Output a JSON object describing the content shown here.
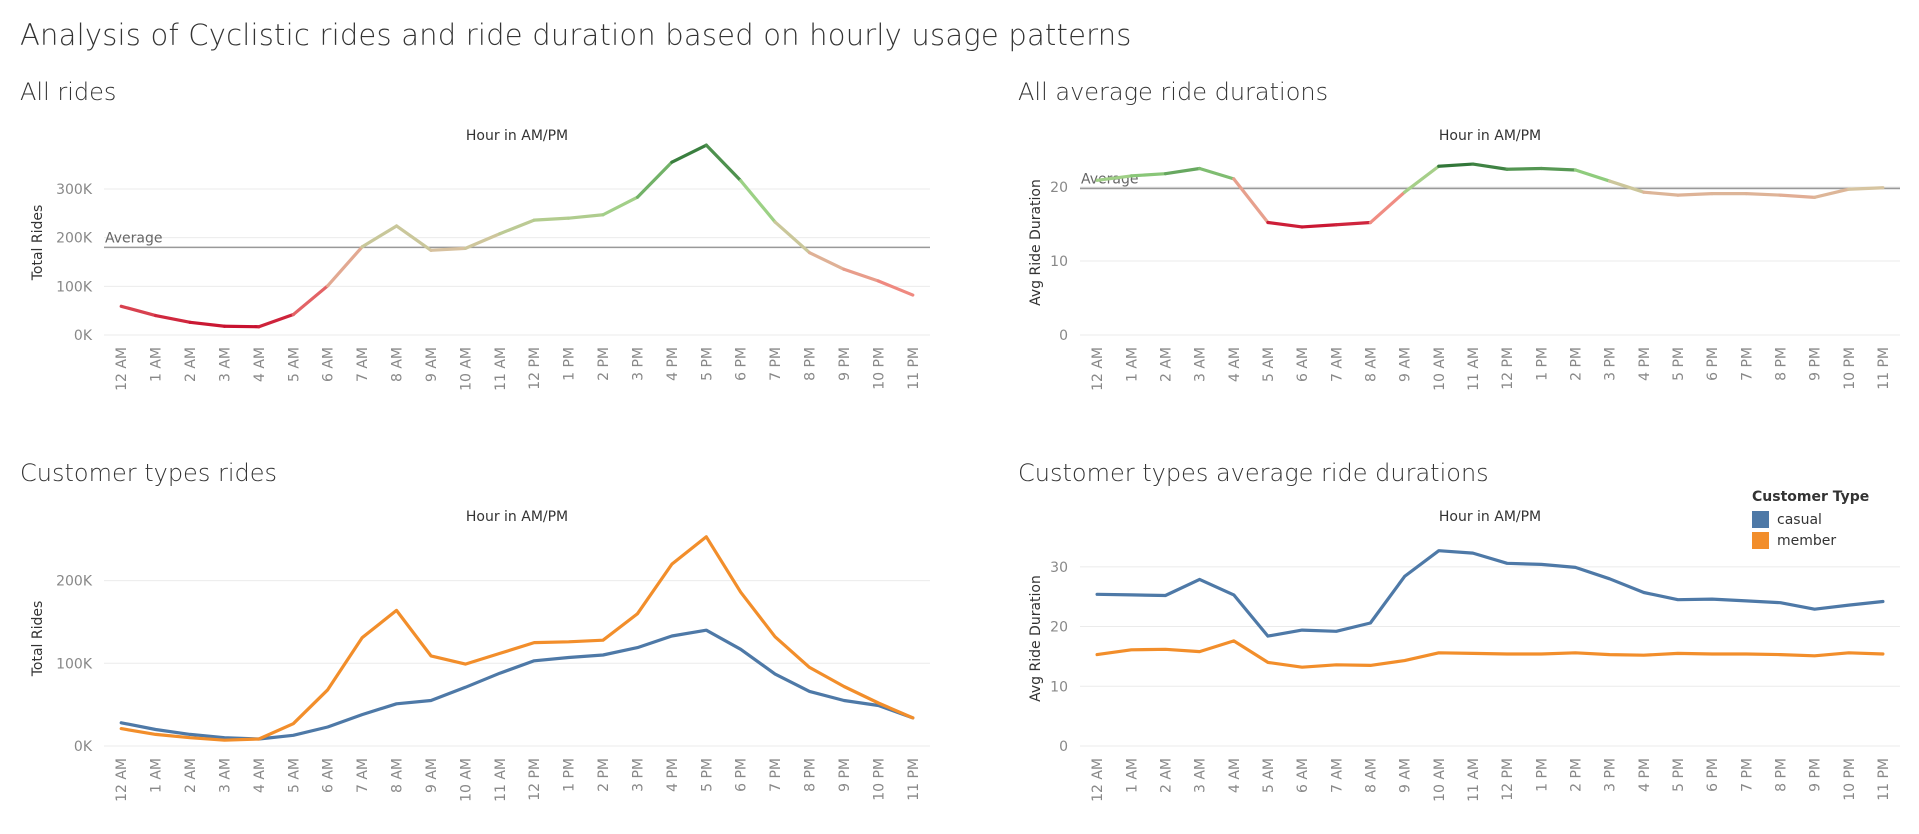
{
  "dashboard": {
    "title": "Analysis of Cyclistic rides and ride duration based on hourly usage patterns"
  },
  "colors": {
    "casual": "#4e79a7",
    "member": "#f28e2b",
    "average_line": "#999999",
    "grid": "#ebebeb"
  },
  "chart_data": [
    {
      "id": "all-rides",
      "panel_title": "All rides",
      "type": "line",
      "xlabel": "Hour in AM/PM",
      "ylabel": "Total Rides",
      "categories": [
        "12 AM",
        "1 AM",
        "2 AM",
        "3 AM",
        "4 AM",
        "5 AM",
        "6 AM",
        "7 AM",
        "8 AM",
        "9 AM",
        "10 AM",
        "11 AM",
        "12 PM",
        "1 PM",
        "2 PM",
        "3 PM",
        "4 PM",
        "5 PM",
        "6 PM",
        "7 PM",
        "8 PM",
        "9 PM",
        "10 PM",
        "11 PM"
      ],
      "ylim": [
        0,
        380000
      ],
      "yticks": [
        0,
        100000,
        200000,
        300000
      ],
      "ytick_labels": [
        "0K",
        "100K",
        "200K",
        "300K"
      ],
      "series": [
        {
          "values": [
            59000,
            40000,
            26000,
            18000,
            17000,
            42000,
            101000,
            181000,
            224000,
            174000,
            178000,
            208000,
            236000,
            240000,
            247000,
            283000,
            355000,
            390000,
            317000,
            232000,
            169000,
            135000,
            111000,
            82000
          ]
        }
      ],
      "average": {
        "label": "Average",
        "value": 180000
      },
      "color_mode": "diverging-red-green"
    },
    {
      "id": "all-avg-durations",
      "panel_title": "All average ride durations",
      "type": "line",
      "xlabel": "Hour in AM/PM",
      "ylabel": "Avg Ride Duration",
      "categories": [
        "12 AM",
        "1 AM",
        "2 AM",
        "3 AM",
        "4 AM",
        "5 AM",
        "6 AM",
        "7 AM",
        "8 AM",
        "9 AM",
        "10 AM",
        "11 AM",
        "12 PM",
        "1 PM",
        "2 PM",
        "3 PM",
        "4 PM",
        "5 PM",
        "6 PM",
        "7 PM",
        "8 PM",
        "9 PM",
        "10 PM",
        "11 PM"
      ],
      "ylim": [
        0,
        25
      ],
      "yticks": [
        0,
        10,
        20
      ],
      "ytick_labels": [
        "0",
        "10",
        "20"
      ],
      "series": [
        {
          "values": [
            20.9,
            21.5,
            21.8,
            22.5,
            21.1,
            15.2,
            14.6,
            14.9,
            15.2,
            19.3,
            22.8,
            23.1,
            22.4,
            22.5,
            22.3,
            20.8,
            19.3,
            18.9,
            19.1,
            19.1,
            18.9,
            18.6,
            19.7,
            19.9
          ]
        }
      ],
      "average": {
        "label": "Average",
        "value": 19.8
      },
      "color_mode": "diverging-red-green"
    },
    {
      "id": "customer-types-rides",
      "panel_title": "Customer types rides",
      "type": "line",
      "xlabel": "Hour in AM/PM",
      "ylabel": "Total Rides",
      "categories": [
        "12 AM",
        "1 AM",
        "2 AM",
        "3 AM",
        "4 AM",
        "5 AM",
        "6 AM",
        "7 AM",
        "8 AM",
        "9 AM",
        "10 AM",
        "11 AM",
        "12 PM",
        "1 PM",
        "2 PM",
        "3 PM",
        "4 PM",
        "5 PM",
        "6 PM",
        "7 PM",
        "8 PM",
        "9 PM",
        "10 PM",
        "11 PM"
      ],
      "ylim": [
        0,
        260000
      ],
      "yticks": [
        0,
        100000,
        200000
      ],
      "ytick_labels": [
        "0K",
        "100K",
        "200K"
      ],
      "series": [
        {
          "name": "casual",
          "values": [
            28000,
            20000,
            14000,
            10000,
            8500,
            13000,
            23000,
            38000,
            51000,
            55000,
            71000,
            88000,
            103000,
            107000,
            110000,
            119000,
            133000,
            140000,
            117000,
            87000,
            66000,
            55000,
            49000,
            34000
          ]
        },
        {
          "name": "member",
          "values": [
            21000,
            14000,
            10000,
            7000,
            8500,
            27000,
            68000,
            131000,
            164000,
            109000,
            99000,
            112000,
            125000,
            126000,
            128000,
            160000,
            220000,
            253000,
            186000,
            132000,
            95000,
            72000,
            52000,
            34000
          ]
        }
      ]
    },
    {
      "id": "customer-types-avg-durations",
      "panel_title": "Customer types average ride durations",
      "type": "line",
      "xlabel": "Hour in AM/PM",
      "ylabel": "Avg Ride Duration",
      "categories": [
        "12 AM",
        "1 AM",
        "2 AM",
        "3 AM",
        "4 AM",
        "5 AM",
        "6 AM",
        "7 AM",
        "8 AM",
        "9 AM",
        "10 AM",
        "11 AM",
        "12 PM",
        "1 PM",
        "2 PM",
        "3 PM",
        "4 PM",
        "5 PM",
        "6 PM",
        "7 PM",
        "8 PM",
        "9 PM",
        "10 PM",
        "11 PM"
      ],
      "ylim": [
        0,
        36
      ],
      "yticks": [
        0,
        10,
        20,
        30
      ],
      "ytick_labels": [
        "0",
        "10",
        "20",
        "30"
      ],
      "series": [
        {
          "name": "casual",
          "values": [
            25.4,
            25.3,
            25.2,
            27.9,
            25.3,
            18.4,
            19.4,
            19.2,
            20.6,
            28.4,
            32.7,
            32.3,
            30.6,
            30.4,
            29.9,
            28.0,
            25.7,
            24.5,
            24.6,
            24.3,
            24.0,
            22.9,
            23.6,
            24.2
          ]
        },
        {
          "name": "member",
          "values": [
            15.3,
            16.1,
            16.2,
            15.8,
            17.6,
            14.0,
            13.2,
            13.6,
            13.5,
            14.3,
            15.6,
            15.5,
            15.4,
            15.4,
            15.6,
            15.3,
            15.2,
            15.5,
            15.4,
            15.4,
            15.3,
            15.1,
            15.6,
            15.4
          ]
        }
      ],
      "legend": {
        "title": "Customer Type",
        "position": "top-right",
        "items": [
          "casual",
          "member"
        ]
      }
    }
  ]
}
